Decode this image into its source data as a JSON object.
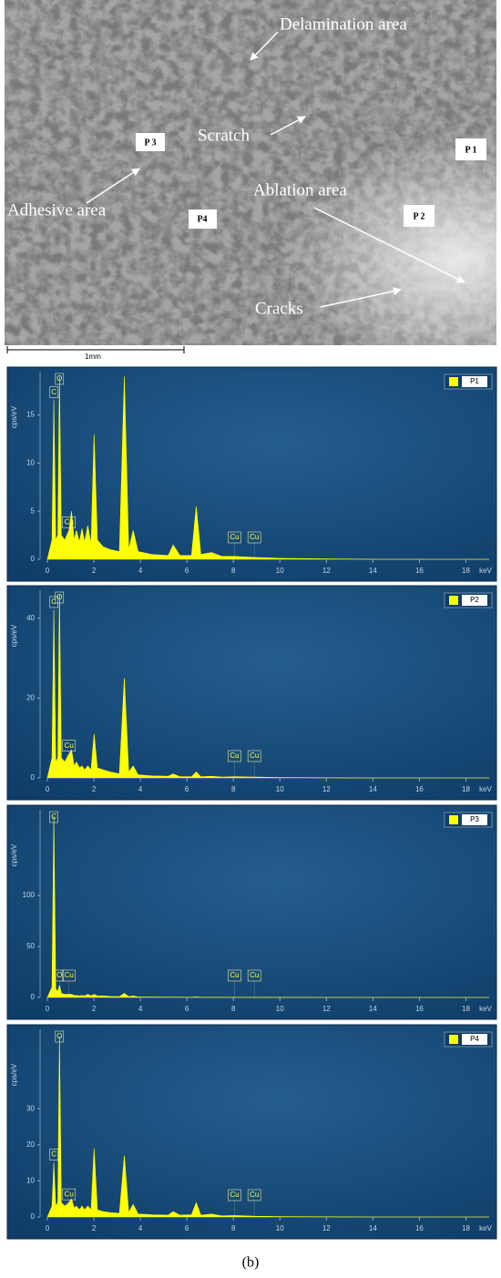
{
  "image": {
    "labels": [
      "Delamination area",
      "Scratch",
      "Adhesive area",
      "Ablation area",
      "Cracks"
    ],
    "points": [
      "P 3",
      "P4",
      "P 1",
      "P 2"
    ],
    "scale_bar": "1mm"
  },
  "chart_data": [
    {
      "type": "area",
      "ylabel": "cps/eV",
      "xlabel": "keV",
      "xlim": [
        0,
        19
      ],
      "ylim": [
        0,
        19.5
      ],
      "xticks": [
        0,
        2,
        4,
        6,
        8,
        10,
        12,
        14,
        16,
        18
      ],
      "yticks": [
        0,
        5,
        10,
        15
      ],
      "x": [
        0,
        0.2,
        0.28,
        0.36,
        0.45,
        0.52,
        0.6,
        0.75,
        0.93,
        1.04,
        1.15,
        1.25,
        1.38,
        1.49,
        1.6,
        1.74,
        1.88,
        2.01,
        2.15,
        2.4,
        2.7,
        3.1,
        3.31,
        3.5,
        3.69,
        3.9,
        4.5,
        5.2,
        5.41,
        5.7,
        6.2,
        6.4,
        6.6,
        7.06,
        7.5,
        8.05,
        8.9,
        10,
        12,
        14,
        19
      ],
      "series": [
        {
          "name": "P1",
          "color": "#ffff00",
          "values": [
            0,
            2,
            16.5,
            2,
            2.5,
            19,
            2.5,
            2,
            3,
            5,
            2,
            3,
            1.8,
            3.2,
            1.8,
            3.5,
            1.6,
            13,
            2,
            1.3,
            1,
            0.8,
            19,
            1,
            3,
            0.8,
            0.5,
            0.4,
            1.5,
            0.4,
            0.4,
            5.5,
            0.5,
            0.7,
            0.3,
            0.3,
            0.2,
            0.1,
            0.05,
            0,
            0
          ]
        }
      ],
      "annotations": [
        {
          "text": "C",
          "x": 0.28
        },
        {
          "text": "O",
          "x": 0.52
        },
        {
          "text": "Cu",
          "x": 0.93
        },
        {
          "text": "Cu",
          "x": 8.05
        },
        {
          "text": "Cu",
          "x": 8.9
        }
      ]
    },
    {
      "type": "area",
      "ylabel": "cps/eV",
      "xlabel": "keV",
      "xlim": [
        0,
        19
      ],
      "ylim": [
        0,
        47
      ],
      "xticks": [
        0,
        2,
        4,
        6,
        8,
        10,
        12,
        14,
        16,
        18
      ],
      "yticks": [
        0,
        20,
        40
      ],
      "x": [
        0,
        0.2,
        0.28,
        0.36,
        0.45,
        0.52,
        0.6,
        0.75,
        0.93,
        1.04,
        1.15,
        1.25,
        1.38,
        1.49,
        1.6,
        1.74,
        1.88,
        2.01,
        2.15,
        2.4,
        2.7,
        3.1,
        3.31,
        3.5,
        3.69,
        3.9,
        4.5,
        5.2,
        5.41,
        5.7,
        6.2,
        6.4,
        6.6,
        7.06,
        7.5,
        8.05,
        8.9,
        10,
        12,
        14,
        19
      ],
      "series": [
        {
          "name": "P2",
          "color": "#ffff00",
          "values": [
            0,
            5,
            42,
            4,
            5,
            46,
            5,
            4,
            6,
            7,
            3,
            4,
            2.5,
            3,
            2,
            3,
            2,
            11,
            2.5,
            2,
            1.5,
            1,
            25,
            1.5,
            3,
            0.8,
            0.5,
            0.4,
            1,
            0.3,
            0.3,
            1.5,
            0.3,
            0.4,
            0.2,
            0.3,
            0.2,
            0.1,
            0.05,
            0,
            0
          ]
        }
      ],
      "annotations": [
        {
          "text": "C",
          "x": 0.28
        },
        {
          "text": "O",
          "x": 0.52
        },
        {
          "text": "Cu",
          "x": 0.93
        },
        {
          "text": "Cu",
          "x": 8.05
        },
        {
          "text": "Cu",
          "x": 8.9
        }
      ]
    },
    {
      "type": "area",
      "ylabel": "cps/eV",
      "xlabel": "keV",
      "xlim": [
        0,
        19
      ],
      "ylim": [
        0,
        184
      ],
      "xticks": [
        0,
        2,
        4,
        6,
        8,
        10,
        12,
        14,
        16,
        18
      ],
      "yticks": [
        0,
        50,
        100
      ],
      "x": [
        0,
        0.2,
        0.28,
        0.36,
        0.45,
        0.52,
        0.6,
        0.75,
        0.93,
        1.04,
        1.15,
        1.25,
        1.38,
        1.49,
        1.6,
        1.74,
        1.88,
        2.01,
        2.15,
        2.4,
        2.7,
        3.1,
        3.31,
        3.5,
        3.69,
        3.9,
        4.5,
        5.2,
        5.41,
        5.7,
        6.2,
        6.4,
        6.6,
        7.06,
        7.5,
        8.05,
        8.9,
        10,
        12,
        14,
        19
      ],
      "series": [
        {
          "name": "P3",
          "color": "#ffff00",
          "values": [
            0,
            10,
            178,
            8,
            6,
            12,
            4,
            3,
            3,
            3,
            2,
            2,
            1.5,
            2,
            1.5,
            3,
            1.5,
            3,
            1.5,
            1.5,
            1,
            0.8,
            4,
            0.8,
            1.5,
            0.5,
            0.4,
            0.3,
            0.3,
            0.3,
            0.2,
            0.5,
            0.2,
            0.2,
            0.1,
            0.2,
            0.1,
            0.1,
            0,
            0,
            0
          ]
        }
      ],
      "annotations": [
        {
          "text": "C",
          "x": 0.28
        },
        {
          "text": "O",
          "x": 0.52
        },
        {
          "text": "Cu",
          "x": 0.93
        },
        {
          "text": "Cu",
          "x": 8.05
        },
        {
          "text": "Cu",
          "x": 8.9
        }
      ]
    },
    {
      "type": "area",
      "ylabel": "cps/eV",
      "xlabel": "keV",
      "xlim": [
        0,
        19
      ],
      "ylim": [
        0,
        52
      ],
      "xticks": [
        0,
        2,
        4,
        6,
        8,
        10,
        12,
        14,
        16,
        18
      ],
      "yticks": [
        0,
        10,
        20,
        30
      ],
      "x": [
        0,
        0.2,
        0.28,
        0.36,
        0.45,
        0.52,
        0.6,
        0.75,
        0.93,
        1.04,
        1.15,
        1.25,
        1.38,
        1.49,
        1.6,
        1.74,
        1.88,
        2.01,
        2.15,
        2.4,
        2.7,
        3.1,
        3.31,
        3.5,
        3.69,
        3.9,
        4.5,
        5.2,
        5.41,
        5.7,
        6.2,
        6.4,
        6.6,
        7.06,
        7.5,
        8.05,
        8.9,
        10,
        12,
        14,
        19
      ],
      "series": [
        {
          "name": "P4",
          "color": "#ffff00",
          "values": [
            0,
            3,
            15,
            3,
            4,
            50,
            4,
            3,
            4,
            5,
            2.5,
            3,
            2,
            3,
            2,
            3,
            2,
            19,
            2,
            1.5,
            1.2,
            1,
            17,
            1.2,
            3.5,
            0.8,
            0.6,
            0.5,
            1.5,
            0.5,
            0.6,
            4,
            0.5,
            0.8,
            0.3,
            0.4,
            0.2,
            0.1,
            0.05,
            0,
            0
          ]
        }
      ],
      "annotations": [
        {
          "text": "C",
          "x": 0.28
        },
        {
          "text": "O",
          "x": 0.52
        },
        {
          "text": "Cu",
          "x": 0.93
        },
        {
          "text": "Cu",
          "x": 8.05
        },
        {
          "text": "Cu",
          "x": 8.9
        }
      ]
    }
  ],
  "caption": "(b)"
}
